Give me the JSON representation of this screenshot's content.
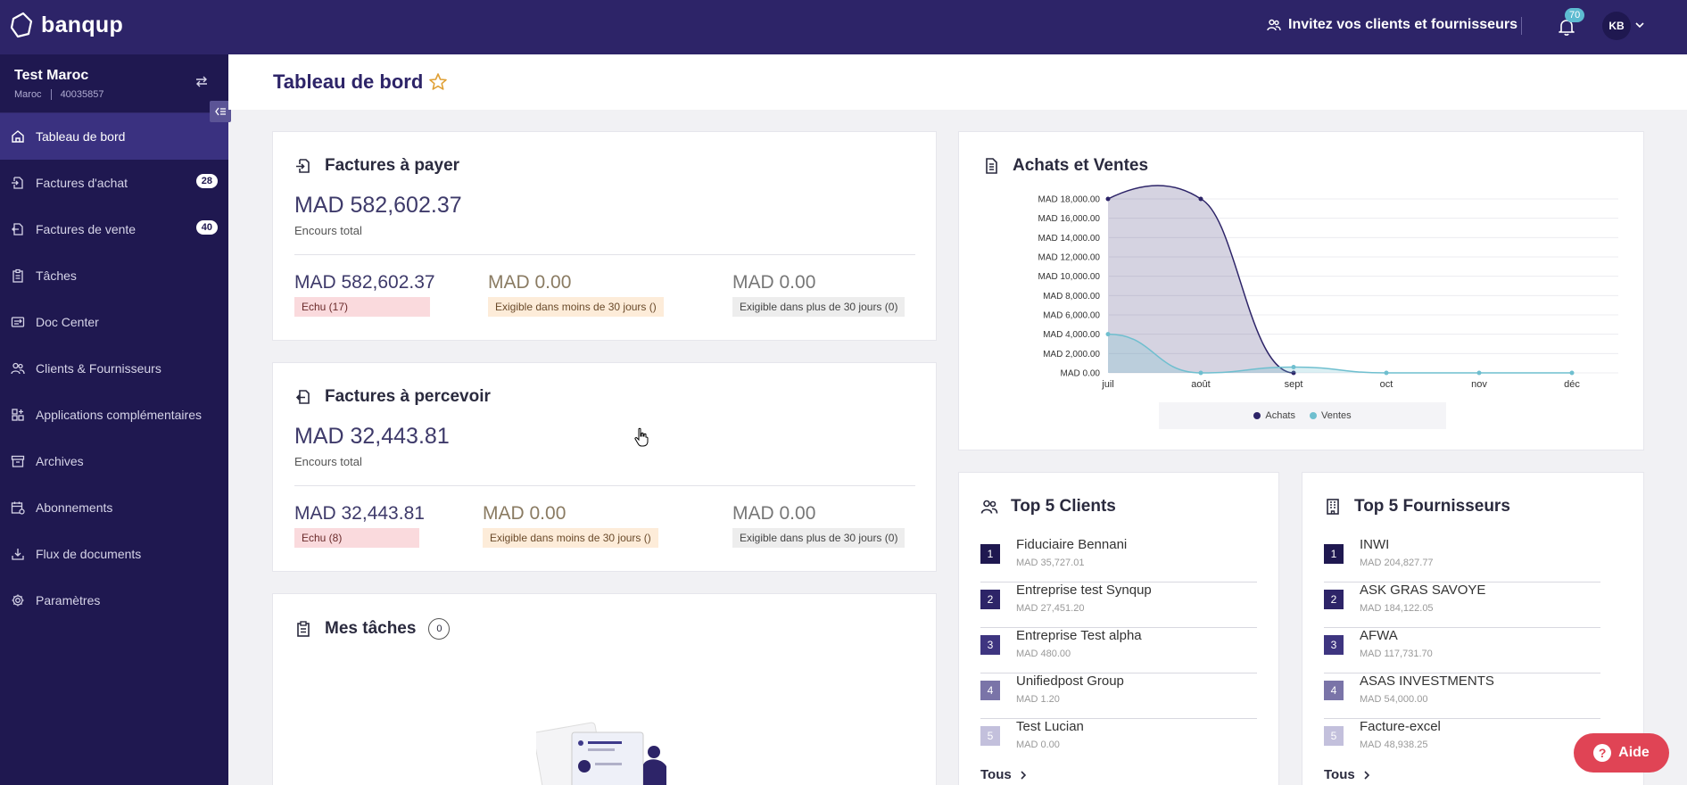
{
  "app": {
    "logo_text": "banqup"
  },
  "topbar": {
    "invite_label": "Invitez vos clients et fournisseurs",
    "notifications_count": "70",
    "user_initials": "KB"
  },
  "company": {
    "name": "Test Maroc",
    "country": "Maroc",
    "id": "40035857"
  },
  "sidebar": {
    "items": [
      {
        "label": "Tableau de bord",
        "icon": "home-icon",
        "active": true
      },
      {
        "label": "Factures d'achat",
        "icon": "file-import-icon",
        "badge": "28"
      },
      {
        "label": "Factures de vente",
        "icon": "file-export-icon",
        "badge": "40"
      },
      {
        "label": "Tâches",
        "icon": "clipboard-icon"
      },
      {
        "label": "Doc Center",
        "icon": "doc-center-icon"
      },
      {
        "label": "Clients & Fournisseurs",
        "icon": "people-icon"
      },
      {
        "label": "Applications complémentaires",
        "icon": "apps-icon"
      },
      {
        "label": "Archives",
        "icon": "archive-icon"
      },
      {
        "label": "Abonnements",
        "icon": "calendar-icon"
      },
      {
        "label": "Flux de documents",
        "icon": "download-icon"
      },
      {
        "label": "Paramètres",
        "icon": "gear-icon"
      }
    ]
  },
  "page": {
    "title": "Tableau de bord"
  },
  "payables": {
    "title": "Factures à payer",
    "total": "MAD 582,602.37",
    "total_label": "Encours total",
    "overdue_amount": "MAD 582,602.37",
    "overdue_label": "Echu (17)",
    "due_soon_amount": "MAD 0.00",
    "due_soon_label": "Exigible dans moins de 30 jours ()",
    "due_later_amount": "MAD 0.00",
    "due_later_label": "Exigible dans plus de 30 jours (0)"
  },
  "receivables": {
    "title": "Factures à percevoir",
    "total": "MAD 32,443.81",
    "total_label": "Encours total",
    "overdue_amount": "MAD 32,443.81",
    "overdue_label": "Echu (8)",
    "due_soon_amount": "MAD 0.00",
    "due_soon_label": "Exigible dans moins de 30 jours ()",
    "due_later_amount": "MAD 0.00",
    "due_later_label": "Exigible dans plus de 30 jours (0)"
  },
  "tasks": {
    "title": "Mes tâches",
    "count": "0"
  },
  "chart_card": {
    "title": "Achats et Ventes"
  },
  "chart_data": {
    "type": "area",
    "title": "Achats et Ventes",
    "categories": [
      "juil",
      "août",
      "sept",
      "oct",
      "nov",
      "déc"
    ],
    "y_ticks": [
      "MAD 0.00",
      "MAD 2,000.00",
      "MAD 4,000.00",
      "MAD 6,000.00",
      "MAD 8,000.00",
      "MAD 10,000.00",
      "MAD 12,000.00",
      "MAD 14,000.00",
      "MAD 16,000.00",
      "MAD 18,000.00"
    ],
    "ylim": [
      0,
      18000
    ],
    "grid": true,
    "legend_position": "bottom",
    "series": [
      {
        "name": "Achats",
        "color": "#2d2468",
        "values": [
          18000,
          18000,
          0,
          0,
          0,
          0
        ]
      },
      {
        "name": "Ventes",
        "color": "#6fbfcf",
        "values": [
          4000,
          0,
          600,
          0,
          0,
          0
        ]
      }
    ]
  },
  "top_clients": {
    "title": "Top 5 Clients",
    "items": [
      {
        "rank": "1",
        "name": "Fiduciaire Bennani",
        "value": "MAD 35,727.01"
      },
      {
        "rank": "2",
        "name": "Entreprise test Synqup",
        "value": "MAD 27,451.20"
      },
      {
        "rank": "3",
        "name": "Entreprise Test alpha",
        "value": "MAD 480.00"
      },
      {
        "rank": "4",
        "name": "Unifiedpost Group",
        "value": "MAD 1.20"
      },
      {
        "rank": "5",
        "name": "Test Lucian",
        "value": "MAD 0.00"
      }
    ],
    "all_label": "Tous"
  },
  "top_suppliers": {
    "title": "Top 5 Fournisseurs",
    "items": [
      {
        "rank": "1",
        "name": "INWI",
        "value": "MAD 204,827.77"
      },
      {
        "rank": "2",
        "name": "ASK GRAS SAVOYE",
        "value": "MAD 184,122.05"
      },
      {
        "rank": "3",
        "name": "AFWA",
        "value": "MAD 117,731.70"
      },
      {
        "rank": "4",
        "name": "ASAS INVESTMENTS",
        "value": "MAD 54,000.00"
      },
      {
        "rank": "5",
        "name": "Facture-excel",
        "value": "MAD 48,938.25"
      }
    ],
    "all_label": "Tous"
  },
  "help": {
    "label": "Aide"
  },
  "colors": {
    "brand": "#2d2468",
    "sidebar": "#1f1850",
    "accent_red": "#e04455"
  }
}
